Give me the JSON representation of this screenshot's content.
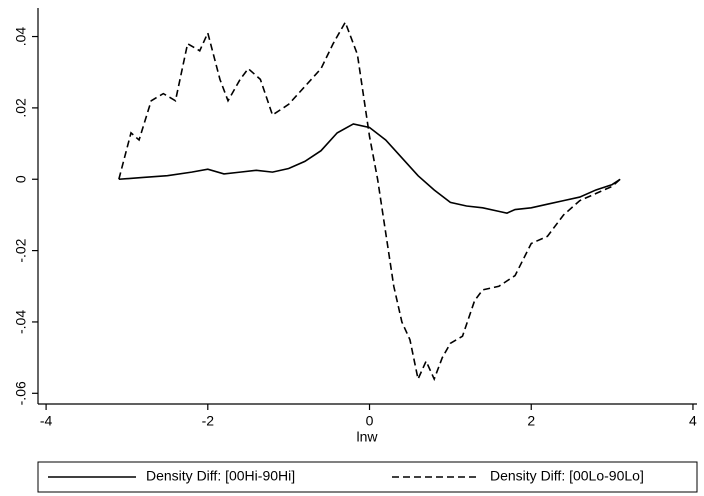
{
  "chart_data": {
    "type": "line",
    "x_label": "lnw",
    "xlim": [
      -4.1,
      4.05
    ],
    "ylim": [
      -0.063,
      0.048
    ],
    "xticks": [
      -4,
      -2,
      0,
      2,
      4
    ],
    "yticks": [
      {
        "value": -0.06,
        "label": "-.06"
      },
      {
        "value": -0.04,
        "label": "-.04"
      },
      {
        "value": -0.02,
        "label": "-.02"
      },
      0,
      {
        "value": 0.02,
        "label": ".02"
      },
      {
        "value": 0.04,
        "label": ".04"
      }
    ],
    "legend": "bottom",
    "series": [
      {
        "name": "Density Diff: [00Hi-90Hi]",
        "color": "#000000",
        "dash": "solid",
        "x": [
          -3.1,
          -2.8,
          -2.5,
          -2.2,
          -2.0,
          -1.8,
          -1.6,
          -1.4,
          -1.2,
          -1.0,
          -0.8,
          -0.6,
          -0.4,
          -0.2,
          0,
          0.2,
          0.4,
          0.6,
          0.8,
          1.0,
          1.2,
          1.4,
          1.6,
          1.7,
          1.8,
          2.0,
          2.2,
          2.4,
          2.6,
          2.8,
          3.0,
          3.1
        ],
        "values": [
          0,
          0.0005,
          0.001,
          0.002,
          0.0028,
          0.0015,
          0.002,
          0.0025,
          0.002,
          0.003,
          0.005,
          0.008,
          0.013,
          0.0155,
          0.0145,
          0.011,
          0.006,
          0.001,
          -0.003,
          -0.0065,
          -0.0075,
          -0.008,
          -0.009,
          -0.0095,
          -0.0085,
          -0.008,
          -0.007,
          -0.006,
          -0.005,
          -0.003,
          -0.0015,
          0
        ]
      },
      {
        "name": "Density Diff: [00Lo-90Lo]",
        "color": "#000000",
        "dash": "dashed",
        "x": [
          -3.1,
          -2.95,
          -2.85,
          -2.7,
          -2.55,
          -2.4,
          -2.25,
          -2.1,
          -2.0,
          -1.85,
          -1.75,
          -1.6,
          -1.5,
          -1.35,
          -1.2,
          -1.0,
          -0.8,
          -0.6,
          -0.45,
          -0.3,
          -0.15,
          0,
          0.1,
          0.2,
          0.3,
          0.4,
          0.5,
          0.6,
          0.7,
          0.8,
          0.9,
          1.0,
          1.15,
          1.3,
          1.4,
          1.6,
          1.8,
          2.0,
          2.2,
          2.4,
          2.6,
          2.8,
          3.0,
          3.1
        ],
        "values": [
          0,
          0.013,
          0.011,
          0.022,
          0.024,
          0.022,
          0.038,
          0.036,
          0.041,
          0.028,
          0.022,
          0.028,
          0.031,
          0.028,
          0.018,
          0.021,
          0.026,
          0.031,
          0.038,
          0.044,
          0.035,
          0.012,
          0,
          -0.015,
          -0.03,
          -0.04,
          -0.045,
          -0.056,
          -0.051,
          -0.056,
          -0.05,
          -0.046,
          -0.044,
          -0.034,
          -0.031,
          -0.03,
          -0.027,
          -0.018,
          -0.016,
          -0.01,
          -0.006,
          -0.004,
          -0.002,
          0
        ]
      }
    ]
  }
}
